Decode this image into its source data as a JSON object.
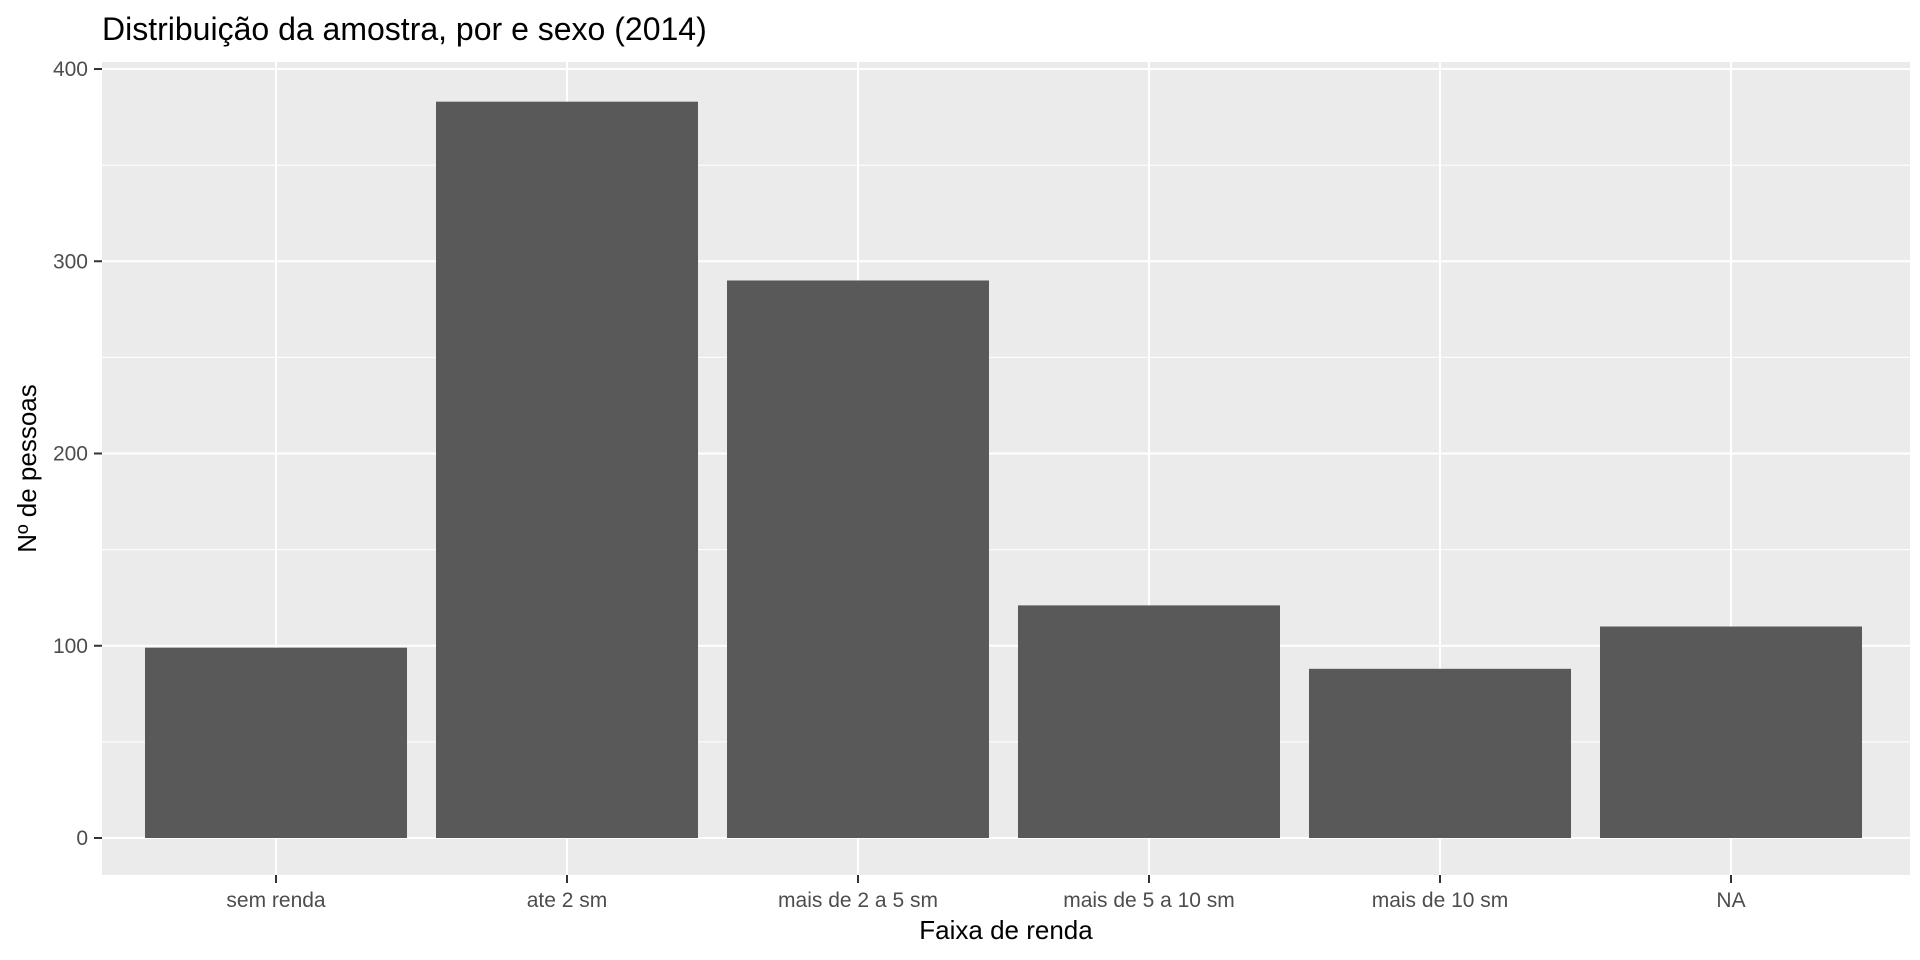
{
  "chart_data": {
    "type": "bar",
    "title": "Distribuição da amostra, por   e sexo (2014)",
    "xlabel": "Faixa de renda",
    "ylabel": "Nº de pessoas",
    "categories": [
      "sem renda",
      "ate 2 sm",
      "mais de 2 a 5 sm",
      "mais de 5 a 10 sm",
      "mais de 10 sm",
      "NA"
    ],
    "values": [
      99,
      383,
      290,
      121,
      88,
      110
    ],
    "ylim": [
      0,
      400
    ],
    "yticks": [
      0,
      100,
      200,
      300,
      400
    ],
    "grid": true,
    "colors": {
      "panel": "#ebebeb",
      "bar": "#595959",
      "grid": "#ffffff",
      "tick_text": "#4d4d4d",
      "tick_mark": "#333333"
    }
  }
}
